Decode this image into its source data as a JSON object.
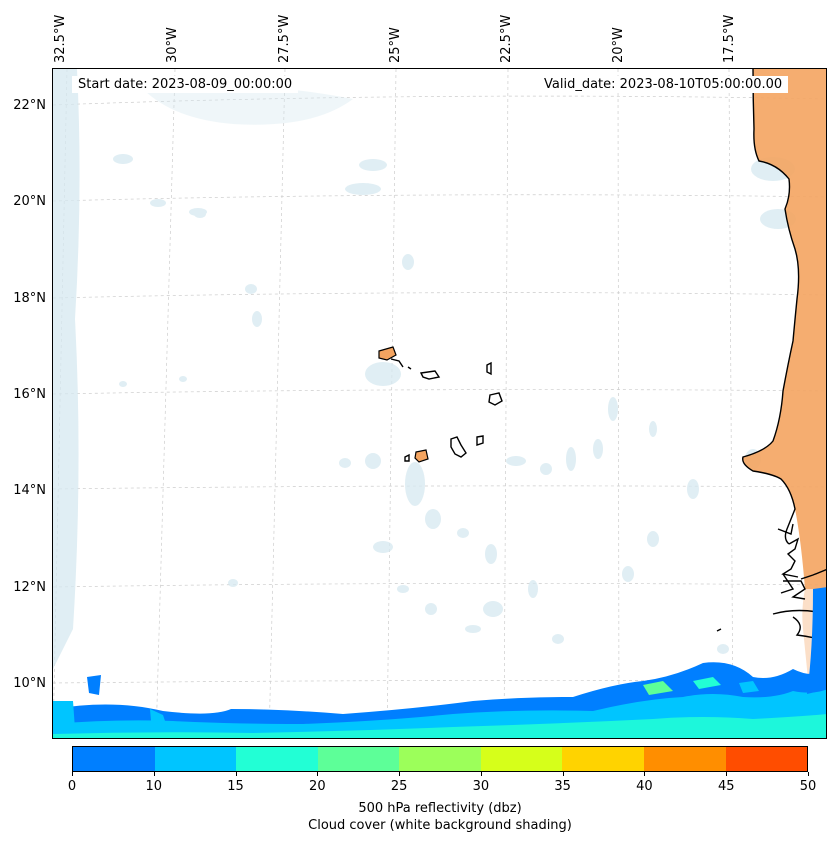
{
  "map": {
    "start_date": "Start date: 2023-08-09_00:00:00",
    "valid_date": "Valid_date: 2023-08-10T05:00:00.00",
    "lon_labels": [
      "32.5°W",
      "30°W",
      "27.5°W",
      "25°W",
      "22.5°W",
      "20°W",
      "17.5°W"
    ],
    "lat_labels": [
      "22°N",
      "20°N",
      "18°N",
      "16°N",
      "14°N",
      "12°N",
      "10°N"
    ],
    "land_color": "#f4a460",
    "cloud_color": "#d6e9f0"
  },
  "colorbar": {
    "ticks": [
      "0",
      "10",
      "15",
      "20",
      "25",
      "30",
      "35",
      "40",
      "45",
      "50"
    ],
    "colors": [
      "#007fff",
      "#00c5ff",
      "#22ffd5",
      "#5dff98",
      "#9cff5a",
      "#d6ff1a",
      "#ffd300",
      "#ff8e00",
      "#ff4d00"
    ],
    "label_line1": "500 hPa reflectivity (dbz)",
    "label_line2": "Cloud cover (white background shading)"
  }
}
